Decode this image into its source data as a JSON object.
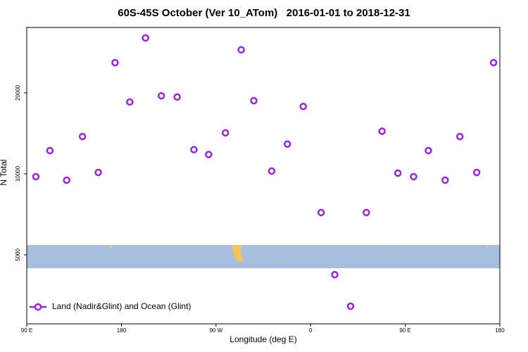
{
  "chart_data": {
    "type": "scatter",
    "title": "60S-45S October (Ver 10_ATom)   2016-01-01 to 2018-12-31",
    "x_label": "Longitude (deg E)",
    "y_label": "N Total",
    "log_y": true,
    "xlim": [
      90,
      540
    ],
    "ylim": [
      2770,
      35000
    ],
    "xticks": [
      {
        "value": 90,
        "label": "90 E"
      },
      180,
      {
        "value": 270,
        "label": "90 W"
      },
      {
        "value": 360,
        "label": "0"
      },
      {
        "value": 450,
        "label": "90 E"
      },
      {
        "value": 540,
        "label": "180"
      }
    ],
    "yticks": [
      5000,
      10000,
      20000
    ],
    "legend": "bottom-left",
    "series": [
      {
        "name": "Land (Nadir&Glint) and Ocean (Glint)",
        "color": "#a020f0",
        "x": [
          98.7,
          112,
          128,
          143,
          158,
          174,
          188,
          203,
          218,
          233,
          249,
          263,
          279,
          294,
          306,
          323,
          338,
          353,
          370,
          383,
          398,
          413,
          428,
          443,
          458,
          472,
          488,
          502,
          518,
          534
        ],
        "values": [
          9760,
          12200,
          9470,
          13760,
          10120,
          25900,
          18500,
          32000,
          19500,
          19300,
          12300,
          11800,
          14200,
          28900,
          18700,
          10240,
          12900,
          17800,
          7180,
          4220,
          3220,
          7180,
          14400,
          10060,
          9760,
          12200,
          9470,
          13760,
          10120,
          25900
        ]
      }
    ]
  }
}
